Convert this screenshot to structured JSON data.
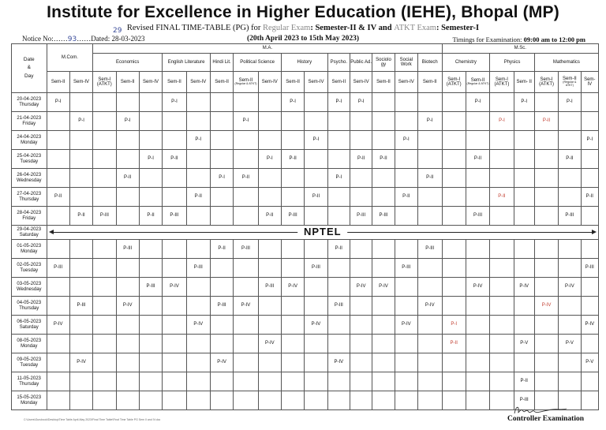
{
  "header": {
    "title": "Institute for Excellence in Higher Education (IEHE), Bhopal (MP)",
    "subtitle_a": "Revised FINAL TIME-TABLE (PG) for ",
    "subtitle_b": "Regular Exam",
    "subtitle_c": ": Semester-II & IV and ",
    "subtitle_d": "ATKT Exam",
    "subtitle_e": ": Semester-I",
    "notice_label": "Notice No:……",
    "notice_no": "93",
    "dated_label": "……Dated: ",
    "dated": "28-03-2023",
    "dated_hw": "29",
    "period": "(20th April 2023 to 15th May 2023)",
    "timings_label": "Timings for Examination: ",
    "timings": "09:00 am to 12:00 pm"
  },
  "table": {
    "date_header": "Date\n&\nDay",
    "groups": [
      "M.Com.",
      "M.A.",
      "M.Sc."
    ],
    "subjects": [
      "Economics",
      "English Literature",
      "Hindi Lit.",
      "Political Science",
      "History",
      "Psycho.",
      "Public Ad.",
      "Sociolo gy",
      "Social Work",
      "Biotech",
      "Chemistry",
      "Physics",
      "Mathematics"
    ],
    "columns": [
      {
        "t": "Sem-II"
      },
      {
        "t": "Sem-IV"
      },
      {
        "t": "Sem-I (ATKT)"
      },
      {
        "t": "Sem-II"
      },
      {
        "t": "Sem-IV"
      },
      {
        "t": "Sem-II"
      },
      {
        "t": "Sem-IV"
      },
      {
        "t": "Sem-II"
      },
      {
        "t": "Sem-II",
        "s": "(Regular & ATKT)"
      },
      {
        "t": "Sem-IV"
      },
      {
        "t": "Sem-II"
      },
      {
        "t": "Sem-IV"
      },
      {
        "t": "Sem-II"
      },
      {
        "t": "Sem-IV"
      },
      {
        "t": "Sem-II"
      },
      {
        "t": "Sem-IV"
      },
      {
        "t": "Sem-II"
      },
      {
        "t": "Sem-I (ATKT)"
      },
      {
        "t": "Sem-II",
        "s": "(Regular & ATKT)"
      },
      {
        "t": "Sem-I (ATKT)"
      },
      {
        "t": "Sem- II"
      },
      {
        "t": "Sem-I (ATKT)"
      },
      {
        "t": "Sem-II",
        "s": "(Regular & ATKT)"
      },
      {
        "t": "Sem- IV"
      }
    ],
    "rows": [
      {
        "date": "20-04-2023",
        "day": "Thursday",
        "cells": {
          "0": "P-I",
          "5": "P-I",
          "10": "P-I",
          "12": "P-I",
          "13": "P-I",
          "18": "P-I",
          "20": "P-I",
          "22": "P-I"
        }
      },
      {
        "date": "21-04-2023",
        "day": "Friday",
        "cells": {
          "1": "P-I",
          "3": "P-I",
          "8": "P-I",
          "16": "P-I",
          "19": "P-I",
          "21": "P-II"
        }
      },
      {
        "date": "24-04-2023",
        "day": "Monday",
        "cells": {
          "6": "P-I",
          "11": "P-I",
          "15": "P-I",
          "23": "P-I"
        }
      },
      {
        "date": "25-04-2023",
        "day": "Tuesday",
        "cells": {
          "4": "P-I",
          "5": "P-II",
          "9": "P-I",
          "10": "P-II",
          "13": "P-II",
          "14": "P-II",
          "18": "P-II",
          "22": "P-II"
        }
      },
      {
        "date": "26-04-2023",
        "day": "Wednesday",
        "cells": {
          "3": "P-II",
          "7": "P-I",
          "8": "P-II",
          "12": "P-I",
          "16": "P-II"
        }
      },
      {
        "date": "27-04-2023",
        "day": "Thursday",
        "cells": {
          "0": "P-II",
          "6": "P-II",
          "11": "P-II",
          "15": "P-II",
          "19": "P-II",
          "23": "P-II"
        }
      },
      {
        "date": "28-04-2023",
        "day": "Friday",
        "cells": {
          "1": "P-II",
          "2": "P-III",
          "4": "P-II",
          "5": "P-III",
          "9": "P-II",
          "10": "P-III",
          "13": "P-III",
          "14": "P-III",
          "18": "P-III",
          "22": "P-III"
        }
      },
      {
        "date": "01-05-2023",
        "day": "Monday",
        "cells": {
          "3": "P-III",
          "7": "P-II",
          "8": "P-III",
          "12": "P-II",
          "16": "P-III"
        }
      },
      {
        "date": "02-05-2023",
        "day": "Tuesday",
        "cells": {
          "0": "P-III",
          "6": "P-III",
          "11": "P-III",
          "15": "P-III",
          "23": "P-III"
        }
      },
      {
        "date": "03-05-2023",
        "day": "Wednesday",
        "cells": {
          "4": "P-III",
          "5": "P-IV",
          "9": "P-III",
          "10": "P-IV",
          "13": "P-IV",
          "14": "P-IV",
          "18": "P-IV",
          "20": "P-IV",
          "22": "P-IV"
        }
      },
      {
        "date": "04-05-2023",
        "day": "Thursday",
        "cells": {
          "1": "P-III",
          "3": "P-IV",
          "7": "P-III",
          "8": "P-IV",
          "12": "P-III",
          "16": "P-IV",
          "21": "P-IV"
        }
      },
      {
        "date": "06-05-2023",
        "day": "Saturday",
        "cells": {
          "0": "P-IV",
          "6": "P-IV",
          "11": "P-IV",
          "15": "P-IV",
          "17": "P-I",
          "23": "P-IV"
        }
      },
      {
        "date": "08-05-2023",
        "day": "Monday",
        "cells": {
          "9": "P-IV",
          "17": "P-II",
          "20": "P-V",
          "22": "P-V"
        }
      },
      {
        "date": "09-05-2023",
        "day": "Tuesday",
        "cells": {
          "1": "P-IV",
          "7": "P-IV",
          "12": "P-IV",
          "23": "P-V"
        }
      },
      {
        "date": "11-05-2023",
        "day": "Thursday",
        "cells": {
          "20": "P-II"
        }
      },
      {
        "date": "15-05-2023",
        "day": "Monday",
        "cells": {
          "20": "P-III"
        }
      }
    ],
    "nptel": {
      "date": "29-04-2023",
      "day": "Saturday",
      "label": "NPTEL"
    }
  },
  "red_cells": [
    "1-19",
    "1-21",
    "5-19",
    "10-21",
    "11-17",
    "12-17"
  ],
  "footer": {
    "path": "C:\\Users\\Gurubook\\Desktop\\Time Table April-May 2023\\Final Time Table\\Final Time Table PG Sem II and IV.doc",
    "controller": "Controller Examination"
  }
}
